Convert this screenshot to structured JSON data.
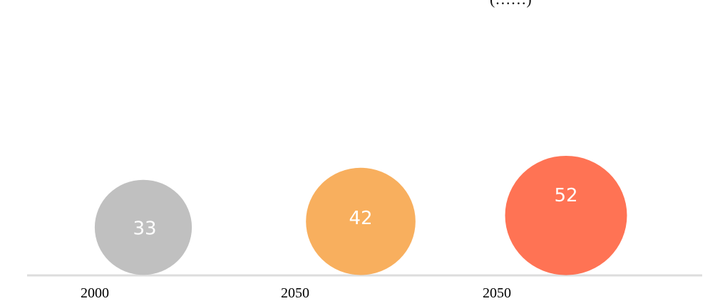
{
  "caption_fragment": "(……)",
  "chart_data": {
    "type": "bubble",
    "categories": [
      "2000",
      "2050",
      "2050"
    ],
    "values": [
      33,
      42,
      52
    ],
    "colors": [
      "#b5b5b5",
      "#f7a142",
      "#ff5a36"
    ],
    "title": "",
    "xlabel": "",
    "ylabel": "",
    "grid": false,
    "legend": "none"
  }
}
